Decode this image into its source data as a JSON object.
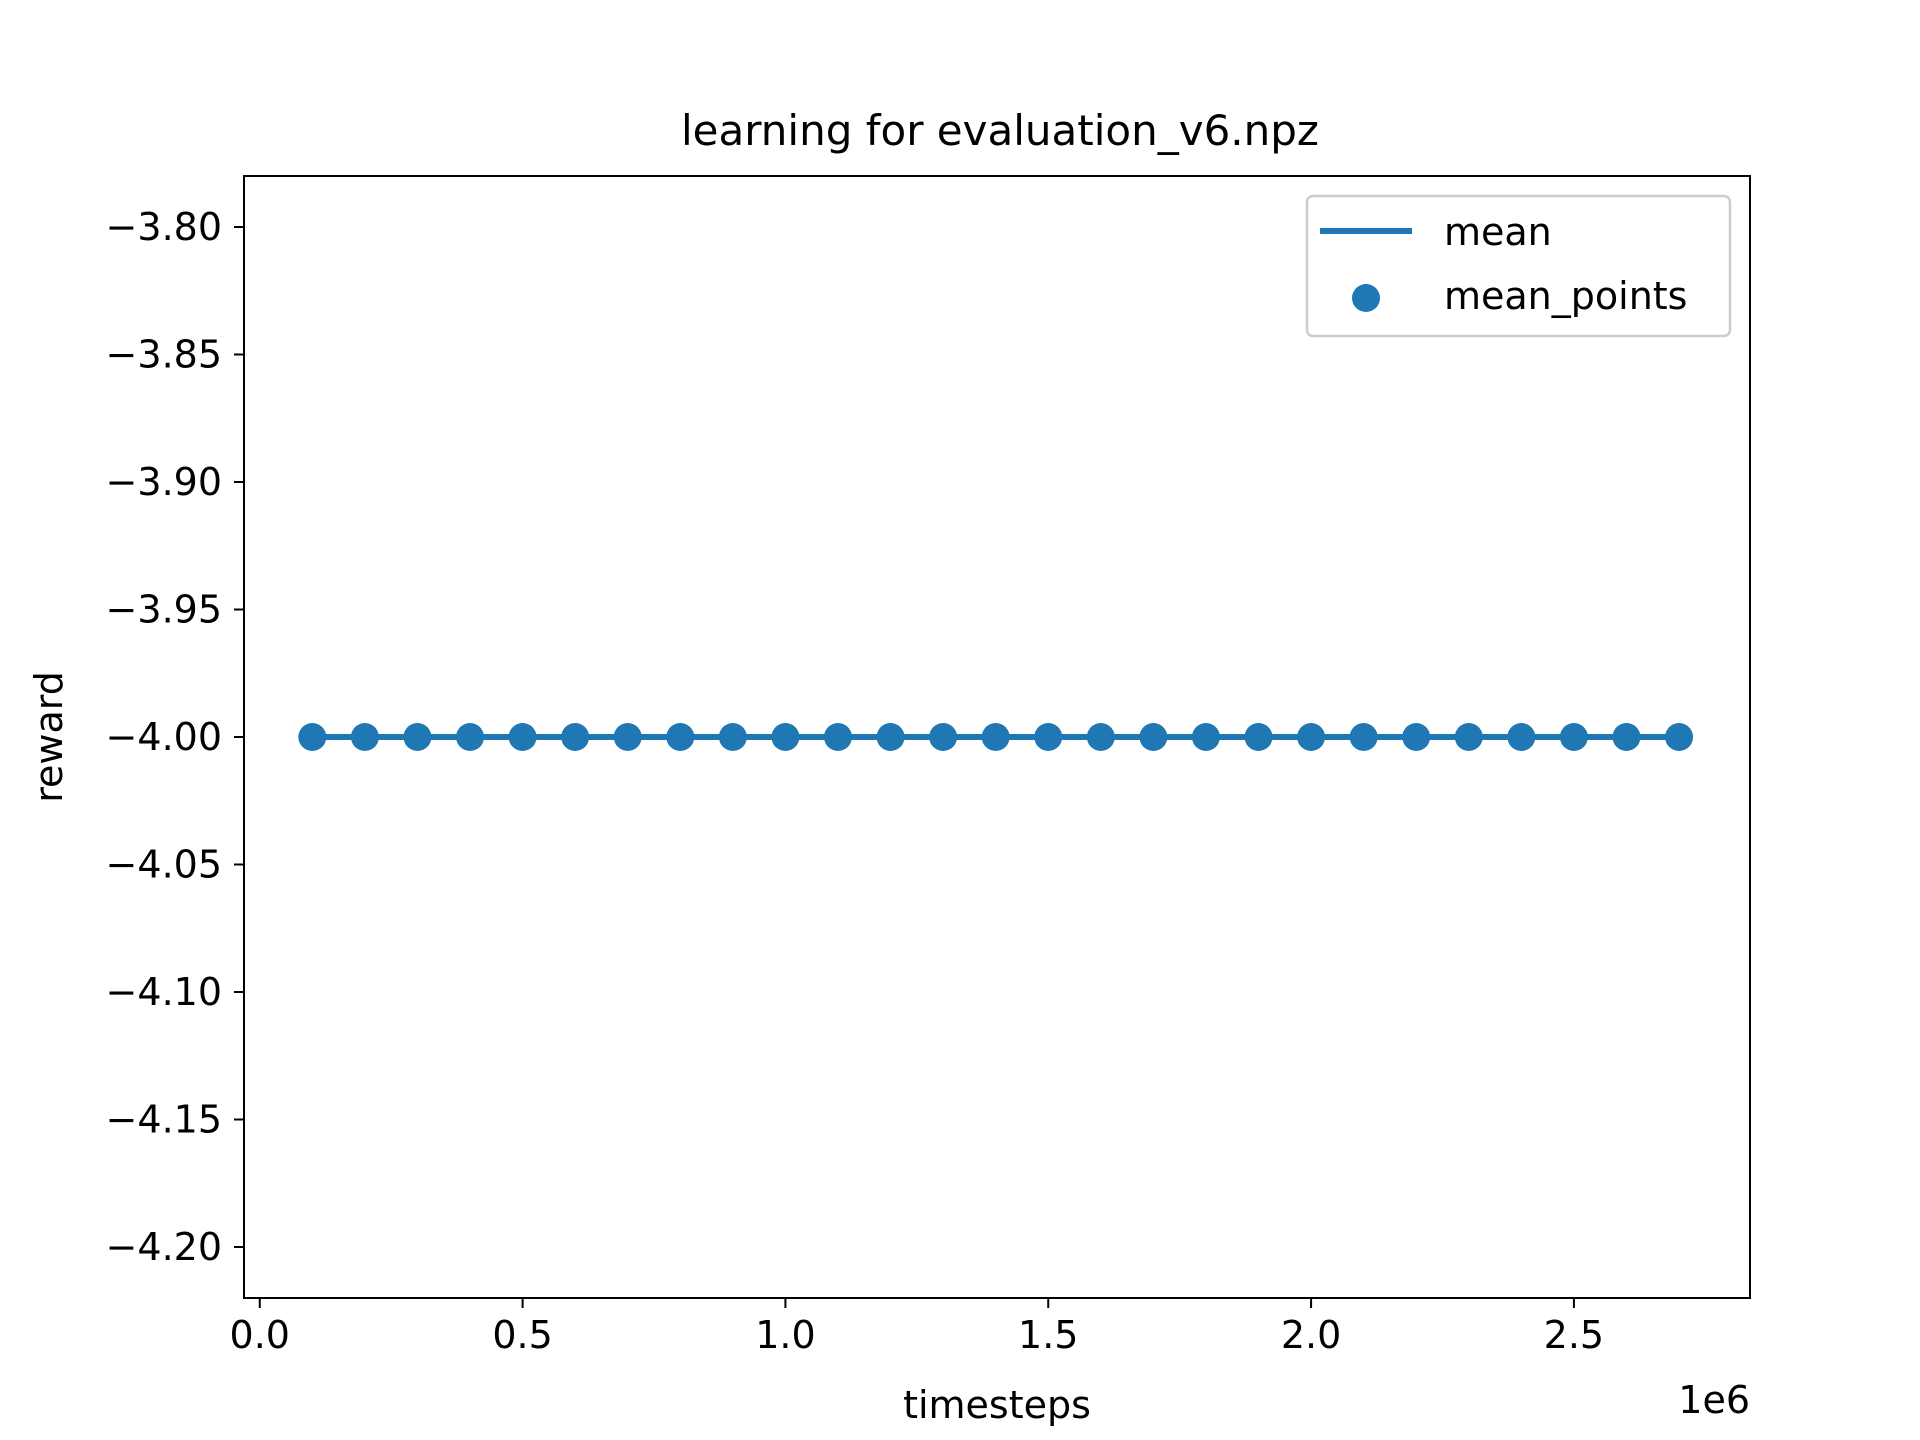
{
  "chart_data": {
    "type": "line",
    "title": "learning for evaluation_v6.npz",
    "xlabel": "timesteps",
    "ylabel": "reward",
    "x_offset_label": "1e6",
    "xlim": [
      -0.03,
      2.835
    ],
    "ylim": [
      -4.22,
      -3.78
    ],
    "x_ticks": [
      {
        "value": 0.0,
        "label": "0.0"
      },
      {
        "value": 0.5,
        "label": "0.5"
      },
      {
        "value": 1.0,
        "label": "1.0"
      },
      {
        "value": 1.5,
        "label": "1.5"
      },
      {
        "value": 2.0,
        "label": "2.0"
      },
      {
        "value": 2.5,
        "label": "2.5"
      }
    ],
    "y_ticks": [
      {
        "value": -3.8,
        "label": "−3.80"
      },
      {
        "value": -3.85,
        "label": "−3.85"
      },
      {
        "value": -3.9,
        "label": "−3.90"
      },
      {
        "value": -3.95,
        "label": "−3.95"
      },
      {
        "value": -4.0,
        "label": "−4.00"
      },
      {
        "value": -4.05,
        "label": "−4.05"
      },
      {
        "value": -4.1,
        "label": "−4.10"
      },
      {
        "value": -4.15,
        "label": "−4.15"
      },
      {
        "value": -4.2,
        "label": "−4.20"
      }
    ],
    "grid": false,
    "legend_position": "top-right",
    "series": [
      {
        "name": "mean",
        "kind": "line",
        "color": "#1f77b4",
        "x": [
          0.1,
          0.2,
          0.3,
          0.4,
          0.5,
          0.6,
          0.7,
          0.8,
          0.9,
          1.0,
          1.1,
          1.2,
          1.3,
          1.4,
          1.5,
          1.6,
          1.7,
          1.8,
          1.9,
          2.0,
          2.1,
          2.2,
          2.3,
          2.4,
          2.5,
          2.6,
          2.7
        ],
        "y": [
          -4,
          -4,
          -4,
          -4,
          -4,
          -4,
          -4,
          -4,
          -4,
          -4,
          -4,
          -4,
          -4,
          -4,
          -4,
          -4,
          -4,
          -4,
          -4,
          -4,
          -4,
          -4,
          -4,
          -4,
          -4,
          -4,
          -4
        ]
      },
      {
        "name": "mean_points",
        "kind": "scatter",
        "color": "#1f77b4",
        "x": [
          0.1,
          0.2,
          0.3,
          0.4,
          0.5,
          0.6,
          0.7,
          0.8,
          0.9,
          1.0,
          1.1,
          1.2,
          1.3,
          1.4,
          1.5,
          1.6,
          1.7,
          1.8,
          1.9,
          2.0,
          2.1,
          2.2,
          2.3,
          2.4,
          2.5,
          2.6,
          2.7
        ],
        "y": [
          -4,
          -4,
          -4,
          -4,
          -4,
          -4,
          -4,
          -4,
          -4,
          -4,
          -4,
          -4,
          -4,
          -4,
          -4,
          -4,
          -4,
          -4,
          -4,
          -4,
          -4,
          -4,
          -4,
          -4,
          -4,
          -4,
          -4
        ]
      }
    ]
  }
}
